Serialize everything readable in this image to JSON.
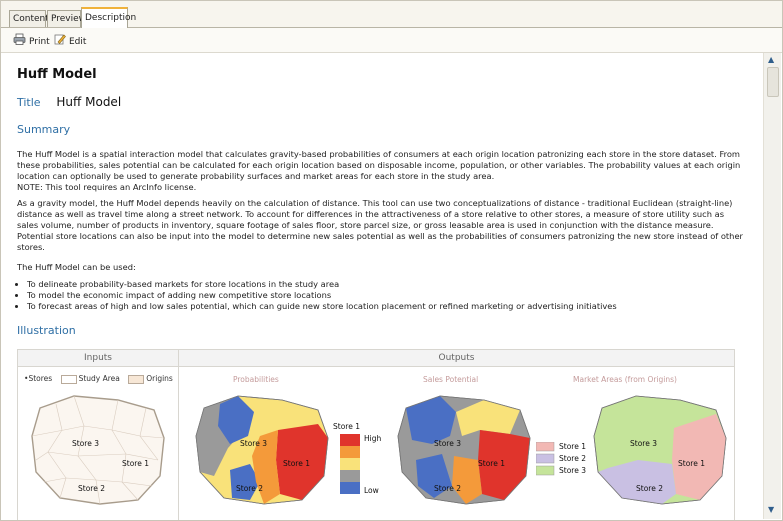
{
  "tabs": [
    {
      "label": "Contents"
    },
    {
      "label": "Preview"
    },
    {
      "label": "Description"
    }
  ],
  "toolbar": {
    "print_label": "Print",
    "edit_label": "Edit"
  },
  "doc": {
    "heading": "Huff Model",
    "title_label": "Title",
    "title_value": "Huff Model",
    "summary_label": "Summary",
    "summary_p1": "The Huff Model is a spatial interaction model that calculates gravity-based probabilities of consumers at each origin location patronizing each store in the store dataset. From these probabilities, sales potential can be calculated for each origin location based on disposable income, population, or other variables. The probability values at each origin location can optionally be used to generate probability surfaces and market areas for each store in the study area.",
    "summary_note": "NOTE: This tool requires an ArcInfo license.",
    "summary_p2": "As a gravity model, the Huff Model depends heavily on the calculation of distance. This tool can use two conceptualizations of distance - traditional Euclidean (straight-line) distance as well as travel time along a street network. To account for differences in the attractiveness of a store relative to other stores, a measure of store utility such as sales volume, number of products in inventory, square footage of sales floor, store parcel size, or gross leasable area is used in conjunction with the distance measure. Potential store locations can also be input into the model to determine new sales potential as well as the probabilities of consumers patronizing the new store instead of other stores.",
    "summary_p3": "The Huff Model can be used:",
    "uses": [
      "To delineate probability-based markets for store locations in the study area",
      "To model the economic impact of adding new competitive store locations",
      "To forecast areas of high and low sales potential, which can guide new store location placement or refined marketing or advertising initiatives"
    ],
    "illustration_label": "Illustration"
  },
  "illustration": {
    "inputs_header": "Inputs",
    "outputs_header": "Outputs",
    "legend_stores": "Stores",
    "legend_study_area": "Study Area",
    "legend_origins": "Origins",
    "sub_probabilities": "Probabilities",
    "sub_sales_potential": "Sales Potential",
    "sub_market_areas": "Market Areas (from Origins)",
    "store_labels": [
      "Store 3",
      "Store 1",
      "Store 2"
    ],
    "scale_title": "Store 1",
    "scale_high": "High",
    "scale_low": "Low",
    "market_legend": [
      "Store 1",
      "Store 2",
      "Store 3"
    ],
    "colors": {
      "high": "#e0342c",
      "mid_high": "#f49a3a",
      "mid": "#f9e27a",
      "low": "#4a6fc4",
      "gray": "#9a9a9a",
      "store1_market": "#f2b8b4",
      "store2_market": "#c9c0e3",
      "store3_market": "#c5e49a"
    }
  }
}
